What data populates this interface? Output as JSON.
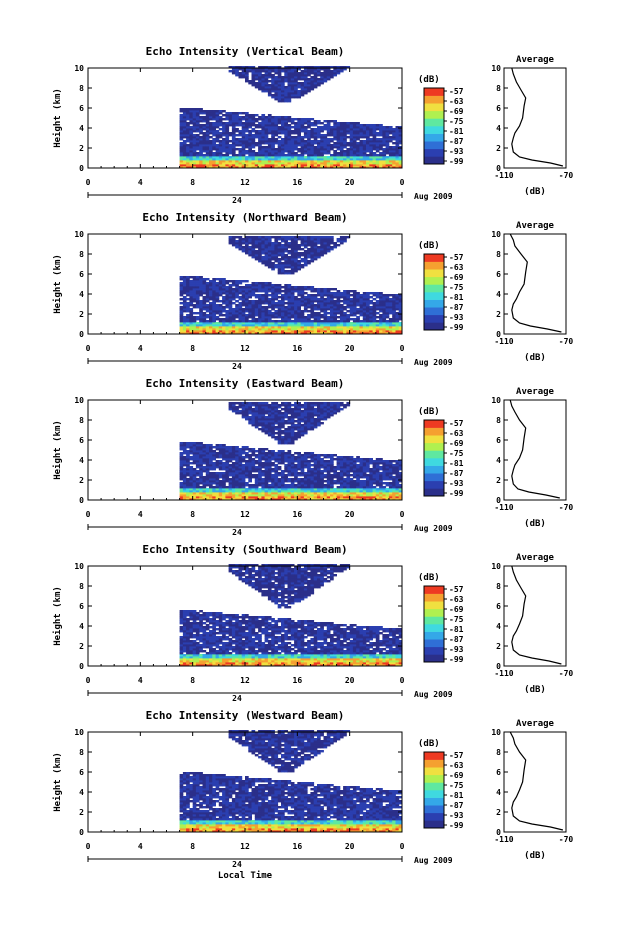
{
  "colors": {
    "scale": [
      "#2b2f8a",
      "#2b3fb0",
      "#2f6fd6",
      "#34a8e8",
      "#3fd9e0",
      "#5fe8a0",
      "#b0f050",
      "#f0e040",
      "#f5a030",
      "#ee3a22"
    ],
    "profile_line": "#000000"
  },
  "figure": {
    "xlabel": "Local Time",
    "date_label": "Aug 2009",
    "date_tick": "24",
    "colorbar_unit": "(dB)",
    "colorbar_ticks": [
      "-57",
      "-63",
      "-69",
      "-75",
      "-81",
      "-87",
      "-93",
      "-99"
    ],
    "profile_title": "Average",
    "profile_xlabel": "(dB)",
    "profile_xticks": [
      "-110",
      "-70"
    ],
    "yticks": [
      "0",
      "2",
      "4",
      "6",
      "8",
      "10"
    ],
    "xticks": [
      "0",
      "4",
      "8",
      "12",
      "16",
      "20",
      "0"
    ]
  },
  "chart_data": [
    {
      "type": "heatmap",
      "title": "Echo Intensity (Vertical Beam)",
      "ylabel": "Height (km)",
      "xlim": [
        0,
        24
      ],
      "ylim": [
        0,
        10
      ],
      "data_start_hour": 7,
      "cloud_top_km": 6.0,
      "upper_echo_km": [
        6.5,
        10
      ],
      "avg_profile": {
        "x": [
          -72,
          -80,
          -92,
          -100,
          -104,
          -105,
          -104,
          -103,
          -100,
          -98,
          -97,
          -96,
          -99,
          -102,
          -104,
          -105
        ],
        "y": [
          0.2,
          0.5,
          0.8,
          1.1,
          1.6,
          2.4,
          3.0,
          3.5,
          4.2,
          5.0,
          6.2,
          7.0,
          7.8,
          8.6,
          9.4,
          10
        ]
      }
    },
    {
      "type": "heatmap",
      "title": "Echo Intensity (Northward Beam)",
      "ylabel": "Height (km)",
      "xlim": [
        0,
        24
      ],
      "ylim": [
        0,
        10
      ],
      "data_start_hour": 7,
      "cloud_top_km": 5.8,
      "upper_echo_km": [
        6.0,
        9.6
      ],
      "avg_profile": {
        "x": [
          -73,
          -82,
          -93,
          -100,
          -104,
          -105,
          -104,
          -102,
          -100,
          -97,
          -96,
          -95,
          -99,
          -103,
          -104,
          -106
        ],
        "y": [
          0.2,
          0.5,
          0.8,
          1.1,
          1.6,
          2.4,
          3.0,
          3.5,
          4.2,
          5.0,
          6.2,
          7.2,
          8.0,
          8.8,
          9.4,
          10
        ]
      }
    },
    {
      "type": "heatmap",
      "title": "Echo Intensity (Eastward Beam)",
      "ylabel": "Height (km)",
      "xlim": [
        0,
        24
      ],
      "ylim": [
        0,
        10
      ],
      "data_start_hour": 7,
      "cloud_top_km": 5.8,
      "upper_echo_km": [
        5.6,
        9.6
      ],
      "avg_profile": {
        "x": [
          -74,
          -83,
          -94,
          -101,
          -104,
          -105,
          -104,
          -103,
          -100,
          -98,
          -97,
          -96,
          -100,
          -103,
          -105,
          -106
        ],
        "y": [
          0.2,
          0.5,
          0.8,
          1.1,
          1.6,
          2.4,
          3.0,
          3.5,
          4.2,
          5.0,
          6.2,
          7.2,
          8.0,
          8.8,
          9.4,
          10
        ]
      }
    },
    {
      "type": "heatmap",
      "title": "Echo Intensity (Southward Beam)",
      "ylabel": "Height (km)",
      "xlim": [
        0,
        24
      ],
      "ylim": [
        0,
        10
      ],
      "data_start_hour": 7,
      "cloud_top_km": 5.6,
      "upper_echo_km": [
        5.8,
        10
      ],
      "avg_profile": {
        "x": [
          -73,
          -81,
          -92,
          -100,
          -104,
          -105,
          -104,
          -102,
          -100,
          -98,
          -97,
          -96,
          -99,
          -102,
          -104,
          -105
        ],
        "y": [
          0.2,
          0.5,
          0.8,
          1.1,
          1.6,
          2.4,
          3.0,
          3.5,
          4.2,
          5.0,
          6.2,
          7.0,
          7.8,
          8.6,
          9.4,
          10
        ]
      }
    },
    {
      "type": "heatmap",
      "title": "Echo Intensity (Westward Beam)",
      "ylabel": "Height (km)",
      "xlim": [
        0,
        24
      ],
      "ylim": [
        0,
        10
      ],
      "data_start_hour": 7,
      "cloud_top_km": 6.0,
      "upper_echo_km": [
        6.0,
        10
      ],
      "avg_profile": {
        "x": [
          -72,
          -80,
          -92,
          -100,
          -104,
          -105,
          -104,
          -102,
          -100,
          -98,
          -97,
          -96,
          -100,
          -103,
          -104,
          -106
        ],
        "y": [
          0.2,
          0.5,
          0.8,
          1.1,
          1.6,
          2.4,
          3.0,
          3.5,
          4.2,
          5.0,
          6.2,
          7.2,
          8.0,
          8.8,
          9.4,
          10
        ]
      }
    }
  ]
}
